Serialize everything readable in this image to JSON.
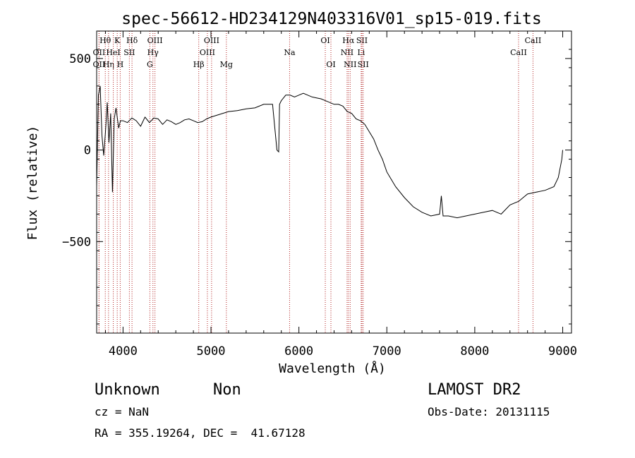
{
  "chart_data": {
    "type": "line",
    "title": "spec-56612-HD234129N403316V01_sp15-019.fits",
    "xlabel": "Wavelength (Å)",
    "ylabel": "Flux (relative)",
    "xlim": [
      3700,
      9100
    ],
    "ylim": [
      -1000,
      650
    ],
    "x_ticks": [
      4000,
      5000,
      6000,
      7000,
      8000,
      9000
    ],
    "x_tick_labels": [
      "4000",
      "5000",
      "6000",
      "7000",
      "8000",
      "9000"
    ],
    "y_ticks": [
      -500,
      0,
      500
    ],
    "y_tick_labels": [
      "−500",
      "0",
      "500"
    ],
    "grid": false,
    "series": [
      {
        "x": [
          3700,
          3720,
          3740,
          3760,
          3780,
          3800,
          3820,
          3840,
          3860,
          3880,
          3900,
          3920,
          3950,
          3970,
          4000,
          4050,
          4100,
          4150,
          4200,
          4250,
          4300,
          4350,
          4400,
          4450,
          4500,
          4550,
          4600,
          4650,
          4700,
          4750,
          4800,
          4850,
          4900,
          4950,
          5000,
          5100,
          5200,
          5300,
          5400,
          5500,
          5600,
          5700,
          5750,
          5770,
          5780,
          5800,
          5850,
          5900,
          5950,
          6000,
          6050,
          6100,
          6150,
          6200,
          6250,
          6300,
          6350,
          6400,
          6450,
          6500,
          6550,
          6600,
          6650,
          6700,
          6750,
          6800,
          6850,
          6900,
          6950,
          7000,
          7100,
          7200,
          7300,
          7400,
          7500,
          7600,
          7620,
          7640,
          7700,
          7800,
          7900,
          8000,
          8100,
          8200,
          8300,
          8400,
          8500,
          8600,
          8700,
          8800,
          8900,
          8950,
          8990,
          9000
        ],
        "y": [
          -200,
          300,
          350,
          80,
          -30,
          100,
          260,
          40,
          200,
          -230,
          170,
          230,
          120,
          160,
          160,
          150,
          175,
          160,
          130,
          180,
          150,
          175,
          170,
          140,
          165,
          155,
          140,
          150,
          165,
          170,
          160,
          150,
          155,
          170,
          180,
          195,
          210,
          215,
          225,
          230,
          250,
          250,
          0,
          -10,
          250,
          270,
          300,
          300,
          290,
          300,
          310,
          300,
          290,
          285,
          280,
          270,
          260,
          250,
          250,
          240,
          210,
          200,
          170,
          160,
          140,
          100,
          60,
          0,
          -50,
          -120,
          -200,
          -260,
          -310,
          -340,
          -360,
          -350,
          -250,
          -360,
          -360,
          -370,
          -360,
          -350,
          -340,
          -330,
          -350,
          -300,
          -280,
          -240,
          -230,
          -220,
          -200,
          -150,
          -50,
          0
        ]
      }
    ],
    "line_markers": [
      {
        "label": "OII",
        "x": 3727,
        "row": 3
      },
      {
        "label": "OII",
        "x": 3727,
        "row": 2
      },
      {
        "label": "Hθ",
        "x": 3798,
        "row": 1
      },
      {
        "label": "Hη",
        "x": 3835,
        "row": 3
      },
      {
        "label": "HeI",
        "x": 3889,
        "row": 2
      },
      {
        "label": "K",
        "x": 3934,
        "row": 1
      },
      {
        "label": "H",
        "x": 3968,
        "row": 3
      },
      {
        "label": "SII",
        "x": 4072,
        "row": 2
      },
      {
        "label": "Hδ",
        "x": 4102,
        "row": 1
      },
      {
        "label": "OIII",
        "x": 4363,
        "row": 1
      },
      {
        "label": "Hγ",
        "x": 4340,
        "row": 2
      },
      {
        "label": "G",
        "x": 4305,
        "row": 3
      },
      {
        "label": "Hβ",
        "x": 4861,
        "row": 3
      },
      {
        "label": "OIII",
        "x": 4959,
        "row": 2
      },
      {
        "label": "OIII",
        "x": 5007,
        "row": 1
      },
      {
        "label": "Mg",
        "x": 5175,
        "row": 3
      },
      {
        "label": "Na",
        "x": 5894,
        "row": 2
      },
      {
        "label": "OI",
        "x": 6300,
        "row": 1
      },
      {
        "label": "OI",
        "x": 6364,
        "row": 3
      },
      {
        "label": "NII",
        "x": 6548,
        "row": 2
      },
      {
        "label": "Hα",
        "x": 6563,
        "row": 1
      },
      {
        "label": "NII",
        "x": 6583,
        "row": 3
      },
      {
        "label": "Li",
        "x": 6708,
        "row": 2
      },
      {
        "label": "SII",
        "x": 6717,
        "row": 1
      },
      {
        "label": "SII",
        "x": 6731,
        "row": 3
      },
      {
        "label": "CaII",
        "x": 8498,
        "row": 2
      },
      {
        "label": "CaII",
        "x": 8662,
        "row": 1
      }
    ]
  },
  "info": {
    "class": "Unknown",
    "subclass": "Non",
    "survey": "LAMOST DR2",
    "cz": "cz = NaN",
    "obs_date": "Obs-Date: 20131115",
    "coords": "RA = 355.19264, DEC =  41.67128"
  },
  "colors": {
    "spectrum": "#000000",
    "marker_line": "#b22222",
    "text": "#000000"
  }
}
